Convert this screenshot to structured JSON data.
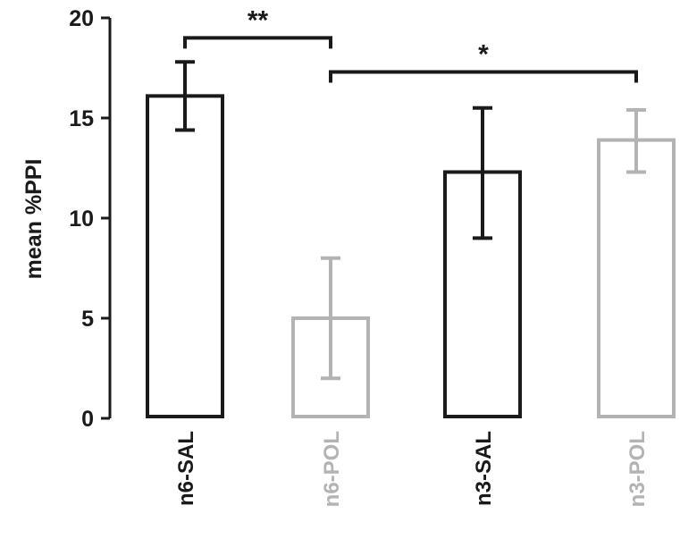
{
  "chart_data": {
    "type": "bar",
    "title": "",
    "xlabel": "",
    "ylabel": "mean %PPI",
    "ylim": [
      0,
      20
    ],
    "yticks": [
      "0",
      "5",
      "10",
      "15",
      "20"
    ],
    "grid": false,
    "categories": [
      "n6-SAL",
      "n6-POL",
      "n3-SAL",
      "n3-POL"
    ],
    "values": [
      16.1,
      5.0,
      12.3,
      13.9
    ],
    "error_low": [
      14.4,
      2.0,
      9.0,
      12.3
    ],
    "error_high": [
      17.8,
      8.0,
      15.5,
      15.4
    ],
    "colors": [
      "#1a1a1a",
      "#b3b3b3",
      "#1a1a1a",
      "#b3b3b3"
    ],
    "significance": [
      {
        "label": "**",
        "from": "n6-SAL",
        "to": "n6-POL",
        "y": 19.0
      },
      {
        "label": "*",
        "from": "n6-POL",
        "to": "n3-POL",
        "y": 17.3
      }
    ]
  }
}
